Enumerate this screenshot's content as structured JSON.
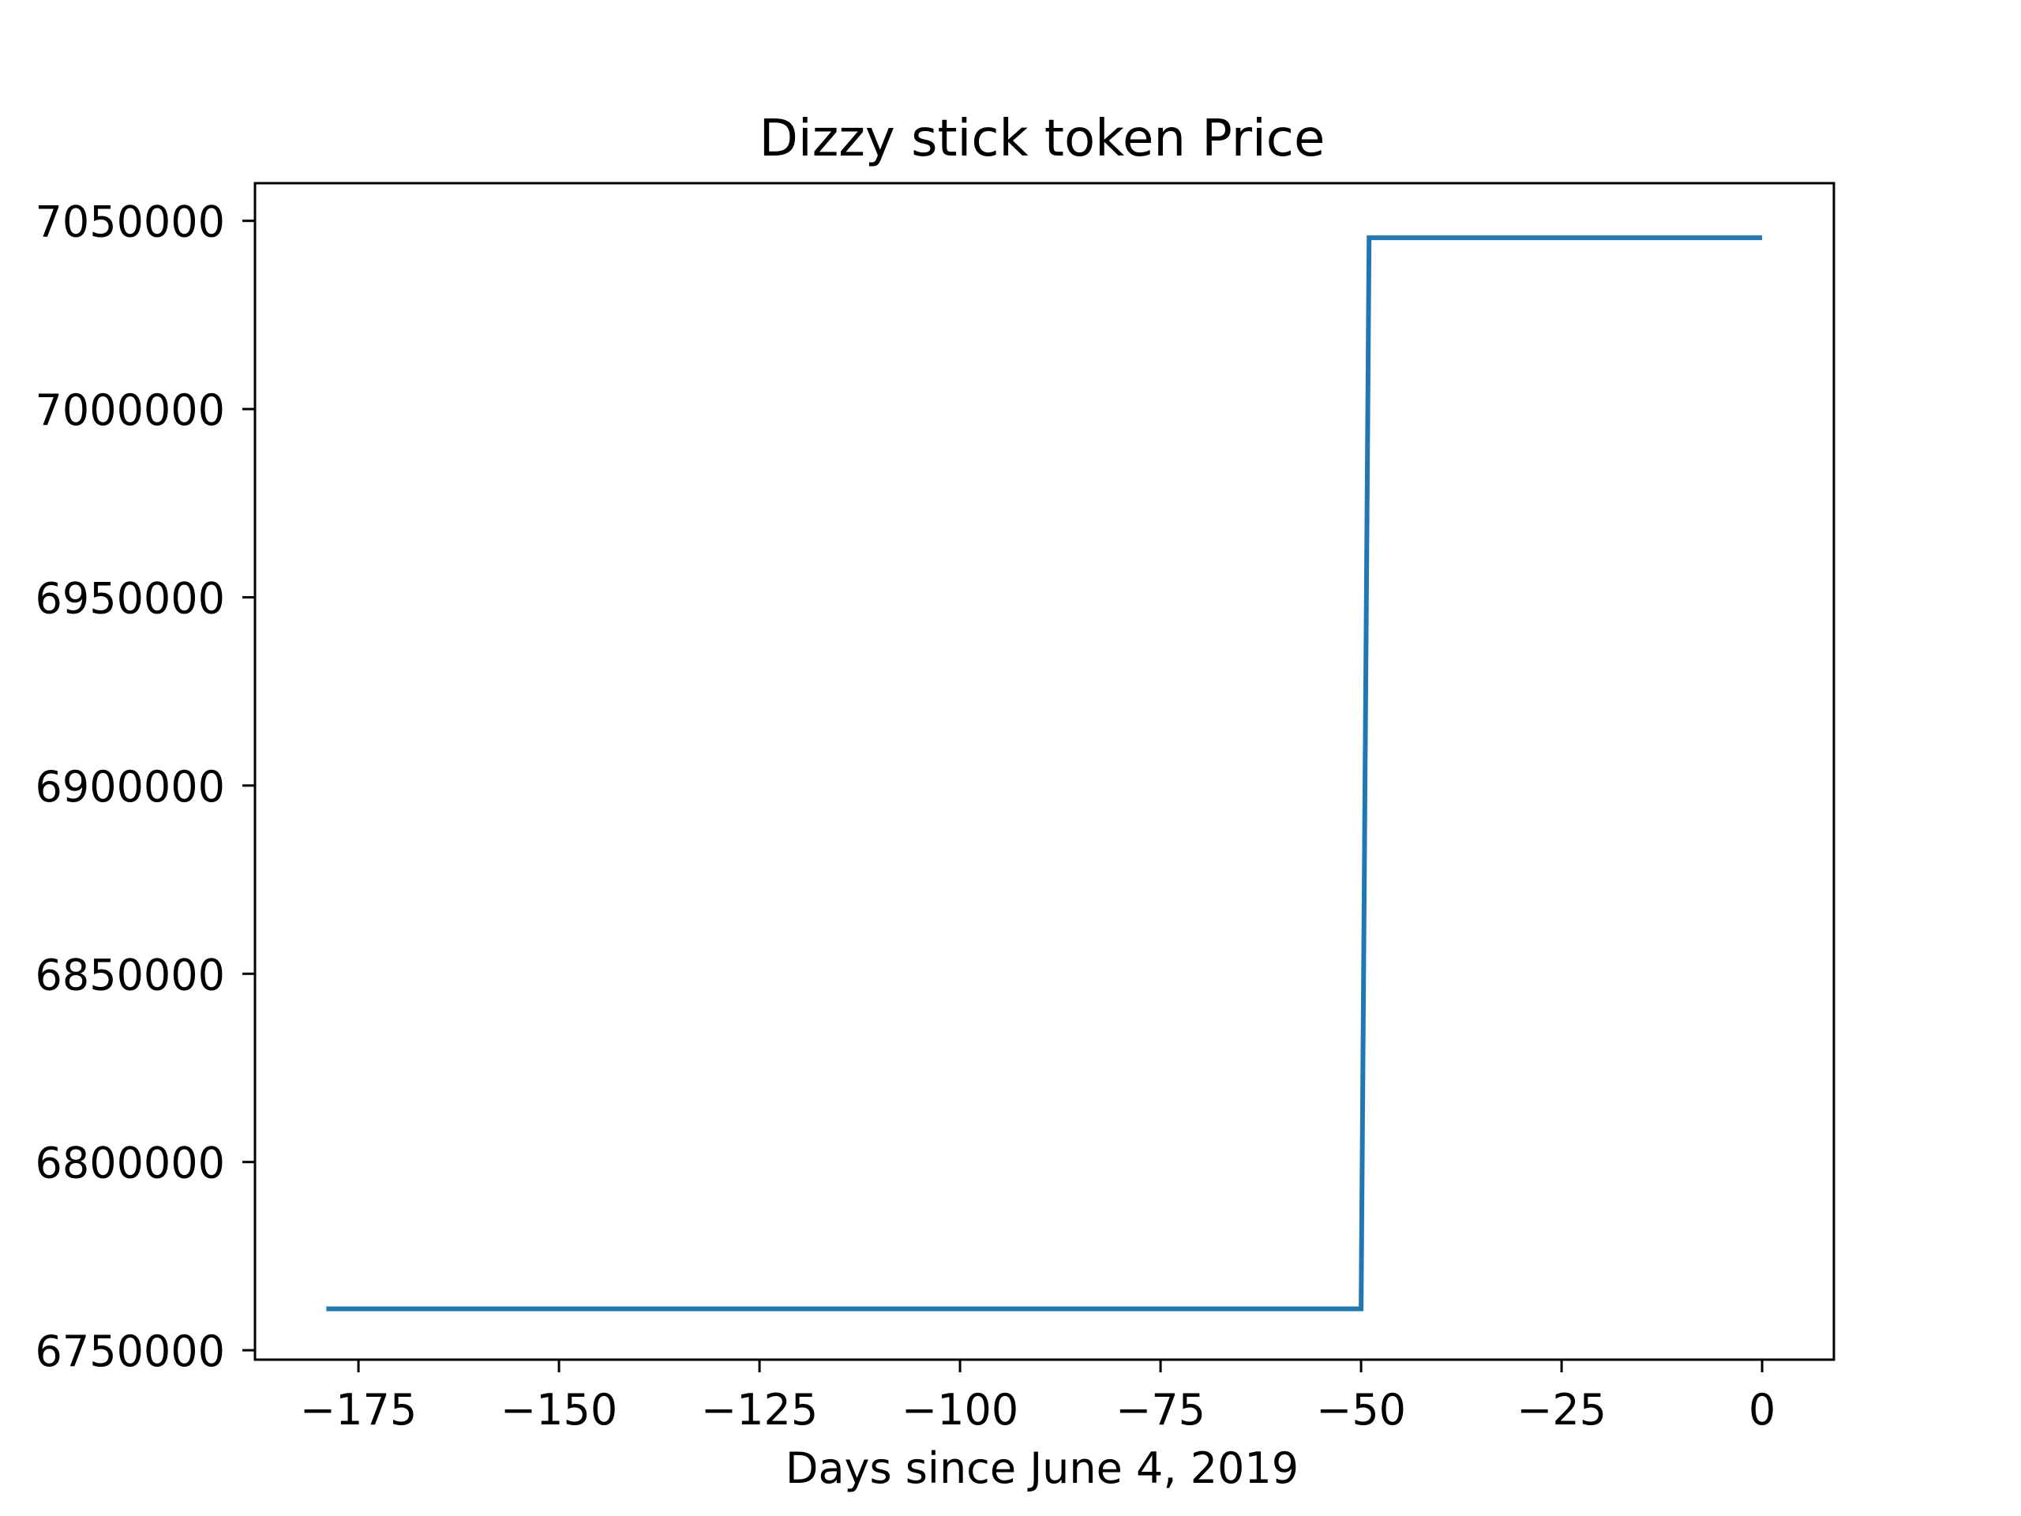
{
  "chart_data": {
    "type": "line",
    "title": "Dizzy stick token Price",
    "xlabel": "Days since June 4, 2019",
    "ylabel": "",
    "xlim": [
      -187.9,
      8.95
    ],
    "ylim": [
      6747500,
      7060000
    ],
    "xticks": [
      -175,
      -150,
      -125,
      -100,
      -75,
      -50,
      -25,
      0
    ],
    "xtick_labels": [
      "−175",
      "−150",
      "−125",
      "−100",
      "−75",
      "−50",
      "−25",
      "0"
    ],
    "yticks": [
      6750000,
      6800000,
      6850000,
      6900000,
      6950000,
      7000000,
      7050000
    ],
    "ytick_labels": [
      "6750000",
      "6800000",
      "6850000",
      "6900000",
      "6950000",
      "7000000",
      "7050000"
    ],
    "grid": false,
    "series": [
      {
        "color": "#1f77b4",
        "x": [
          -179,
          -50,
          -49,
          0
        ],
        "y": [
          6761000,
          6761000,
          7045500,
          7045500
        ]
      }
    ]
  }
}
